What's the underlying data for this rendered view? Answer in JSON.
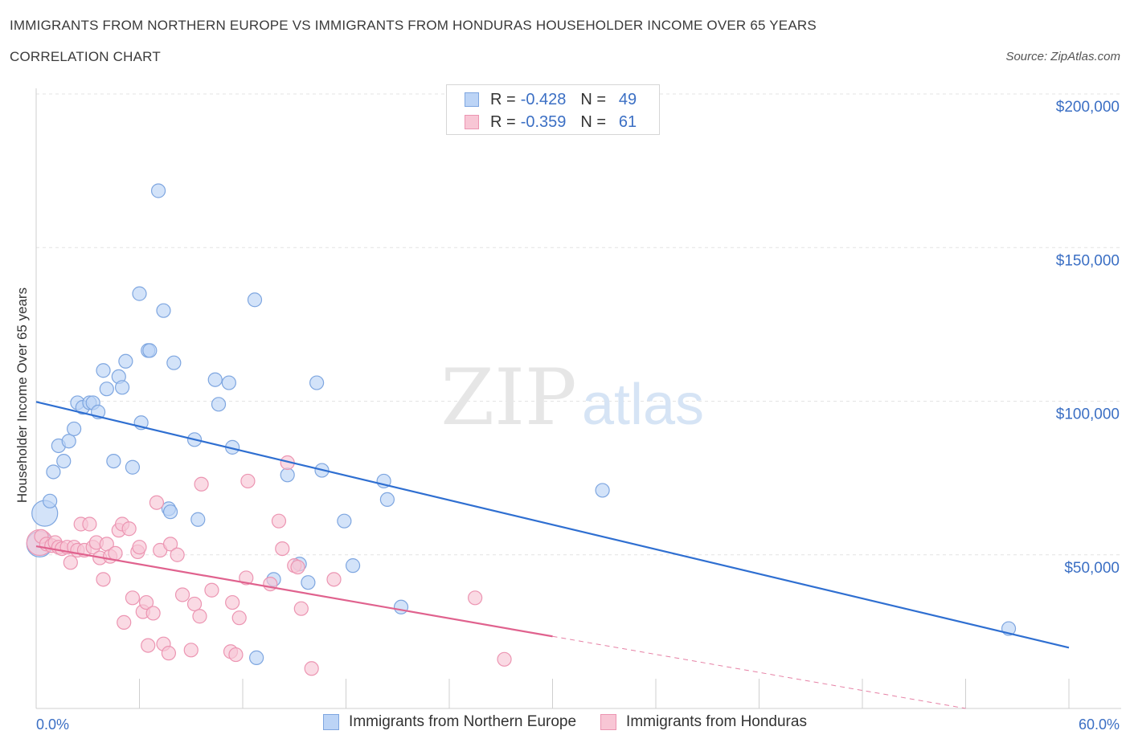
{
  "header": {
    "title": "IMMIGRANTS FROM NORTHERN EUROPE VS IMMIGRANTS FROM HONDURAS HOUSEHOLDER INCOME OVER 65 YEARS",
    "subtitle": "CORRELATION CHART",
    "source": "Source: ZipAtlas.com"
  },
  "watermark": {
    "zip": "ZIP",
    "atlas": "atlas"
  },
  "stats": {
    "rows": [
      {
        "r_label": "R =",
        "r_value": "-0.428",
        "n_label": "N =",
        "n_value": "49"
      },
      {
        "r_label": "R =",
        "r_value": "-0.359",
        "n_label": "N =",
        "n_value": "61"
      }
    ]
  },
  "legend": {
    "northern_europe": "Immigrants from Northern Europe",
    "honduras": "Immigrants from Honduras"
  },
  "chart_data": {
    "type": "scatter",
    "title": "IMMIGRANTS FROM NORTHERN EUROPE VS IMMIGRANTS FROM HONDURAS HOUSEHOLDER INCOME OVER 65 YEARS",
    "ylabel": "Householder Income Over 65 years",
    "xlabel": "",
    "xlim": [
      0,
      60
    ],
    "ylim": [
      0,
      200000
    ],
    "x_tick_labels": [
      "0.0%",
      "60.0%"
    ],
    "y_ticks": [
      50000,
      100000,
      150000,
      200000
    ],
    "y_tick_labels": [
      "$50,000",
      "$100,000",
      "$150,000",
      "$200,000"
    ],
    "grid": true,
    "colors": {
      "northern_europe_fill": "#bcd4f6",
      "northern_europe_stroke": "#7ea6e0",
      "northern_europe_line": "#2f6fd1",
      "honduras_fill": "#f8c6d5",
      "honduras_stroke": "#ec95b2",
      "honduras_line": "#e0628e"
    },
    "series": [
      {
        "name": "Immigrants from Northern Europe",
        "trend": {
          "x": [
            0,
            60
          ],
          "y": [
            99800,
            19800
          ],
          "dashed_from": null
        },
        "points": [
          {
            "x": 0.2,
            "y": 53500,
            "big": true
          },
          {
            "x": 0.5,
            "y": 63500,
            "big": true
          },
          {
            "x": 0.8,
            "y": 67500
          },
          {
            "x": 1.0,
            "y": 77000
          },
          {
            "x": 1.3,
            "y": 85500
          },
          {
            "x": 1.6,
            "y": 80500
          },
          {
            "x": 1.9,
            "y": 87000
          },
          {
            "x": 2.2,
            "y": 91000
          },
          {
            "x": 2.4,
            "y": 99500
          },
          {
            "x": 2.7,
            "y": 98000
          },
          {
            "x": 3.1,
            "y": 99500
          },
          {
            "x": 3.3,
            "y": 99500
          },
          {
            "x": 3.6,
            "y": 96500
          },
          {
            "x": 3.9,
            "y": 110000
          },
          {
            "x": 4.1,
            "y": 104000
          },
          {
            "x": 4.5,
            "y": 80500
          },
          {
            "x": 4.8,
            "y": 108000
          },
          {
            "x": 5.0,
            "y": 104500
          },
          {
            "x": 5.2,
            "y": 113000
          },
          {
            "x": 5.6,
            "y": 78500
          },
          {
            "x": 6.0,
            "y": 135000
          },
          {
            "x": 6.1,
            "y": 93000
          },
          {
            "x": 6.5,
            "y": 116500
          },
          {
            "x": 6.6,
            "y": 116500
          },
          {
            "x": 7.1,
            "y": 168500
          },
          {
            "x": 7.4,
            "y": 129500
          },
          {
            "x": 7.7,
            "y": 65000
          },
          {
            "x": 7.8,
            "y": 64000
          },
          {
            "x": 8.0,
            "y": 112500
          },
          {
            "x": 9.2,
            "y": 87500
          },
          {
            "x": 9.4,
            "y": 61500
          },
          {
            "x": 10.4,
            "y": 107000
          },
          {
            "x": 10.6,
            "y": 99000
          },
          {
            "x": 11.2,
            "y": 106000
          },
          {
            "x": 11.4,
            "y": 85000
          },
          {
            "x": 12.7,
            "y": 133000
          },
          {
            "x": 12.8,
            "y": 16500
          },
          {
            "x": 13.8,
            "y": 42000
          },
          {
            "x": 14.6,
            "y": 76000
          },
          {
            "x": 15.3,
            "y": 47000
          },
          {
            "x": 15.8,
            "y": 41000
          },
          {
            "x": 16.3,
            "y": 106000
          },
          {
            "x": 16.6,
            "y": 77500
          },
          {
            "x": 17.9,
            "y": 61000
          },
          {
            "x": 18.4,
            "y": 46500
          },
          {
            "x": 20.2,
            "y": 74000
          },
          {
            "x": 20.4,
            "y": 68000
          },
          {
            "x": 21.2,
            "y": 33000
          },
          {
            "x": 32.9,
            "y": 71000
          },
          {
            "x": 56.5,
            "y": 26000
          }
        ]
      },
      {
        "name": "Immigrants from Honduras",
        "trend": {
          "x": [
            0,
            54
          ],
          "y": [
            52800,
            0
          ],
          "dashed_from": 30
        },
        "points": [
          {
            "x": 0.2,
            "y": 54000,
            "big": true
          },
          {
            "x": 0.3,
            "y": 56000
          },
          {
            "x": 0.6,
            "y": 53500
          },
          {
            "x": 0.9,
            "y": 53000
          },
          {
            "x": 1.1,
            "y": 54000
          },
          {
            "x": 1.3,
            "y": 52500
          },
          {
            "x": 1.5,
            "y": 52000
          },
          {
            "x": 1.8,
            "y": 52500
          },
          {
            "x": 2.0,
            "y": 47500
          },
          {
            "x": 2.2,
            "y": 52500
          },
          {
            "x": 2.4,
            "y": 51500
          },
          {
            "x": 2.6,
            "y": 60000
          },
          {
            "x": 2.8,
            "y": 51500
          },
          {
            "x": 3.1,
            "y": 60000
          },
          {
            "x": 3.3,
            "y": 52500
          },
          {
            "x": 3.5,
            "y": 54000
          },
          {
            "x": 3.7,
            "y": 49000
          },
          {
            "x": 3.9,
            "y": 42000
          },
          {
            "x": 4.1,
            "y": 53500
          },
          {
            "x": 4.3,
            "y": 49500
          },
          {
            "x": 4.6,
            "y": 50500
          },
          {
            "x": 4.8,
            "y": 58000
          },
          {
            "x": 5.0,
            "y": 60000
          },
          {
            "x": 5.1,
            "y": 28000
          },
          {
            "x": 5.4,
            "y": 58500
          },
          {
            "x": 5.6,
            "y": 36000
          },
          {
            "x": 5.9,
            "y": 51000
          },
          {
            "x": 6.0,
            "y": 52500
          },
          {
            "x": 6.2,
            "y": 31500
          },
          {
            "x": 6.4,
            "y": 34500
          },
          {
            "x": 6.5,
            "y": 20500
          },
          {
            "x": 6.8,
            "y": 31000
          },
          {
            "x": 7.0,
            "y": 67000
          },
          {
            "x": 7.2,
            "y": 51500
          },
          {
            "x": 7.4,
            "y": 21000
          },
          {
            "x": 7.7,
            "y": 18000
          },
          {
            "x": 7.8,
            "y": 53500
          },
          {
            "x": 8.2,
            "y": 50000
          },
          {
            "x": 8.5,
            "y": 37000
          },
          {
            "x": 9.0,
            "y": 19000
          },
          {
            "x": 9.2,
            "y": 34000
          },
          {
            "x": 9.5,
            "y": 30000
          },
          {
            "x": 9.6,
            "y": 73000
          },
          {
            "x": 10.2,
            "y": 38500
          },
          {
            "x": 11.3,
            "y": 18500
          },
          {
            "x": 11.4,
            "y": 34500
          },
          {
            "x": 11.6,
            "y": 17500
          },
          {
            "x": 11.8,
            "y": 29500
          },
          {
            "x": 12.2,
            "y": 42500
          },
          {
            "x": 12.3,
            "y": 74000
          },
          {
            "x": 13.6,
            "y": 40500
          },
          {
            "x": 14.1,
            "y": 61000
          },
          {
            "x": 14.3,
            "y": 52000
          },
          {
            "x": 14.6,
            "y": 80000
          },
          {
            "x": 15.0,
            "y": 46500
          },
          {
            "x": 15.2,
            "y": 46000
          },
          {
            "x": 15.4,
            "y": 32500
          },
          {
            "x": 16.0,
            "y": 13000
          },
          {
            "x": 17.3,
            "y": 42000
          },
          {
            "x": 25.5,
            "y": 36000
          },
          {
            "x": 27.2,
            "y": 16000
          }
        ]
      }
    ]
  }
}
